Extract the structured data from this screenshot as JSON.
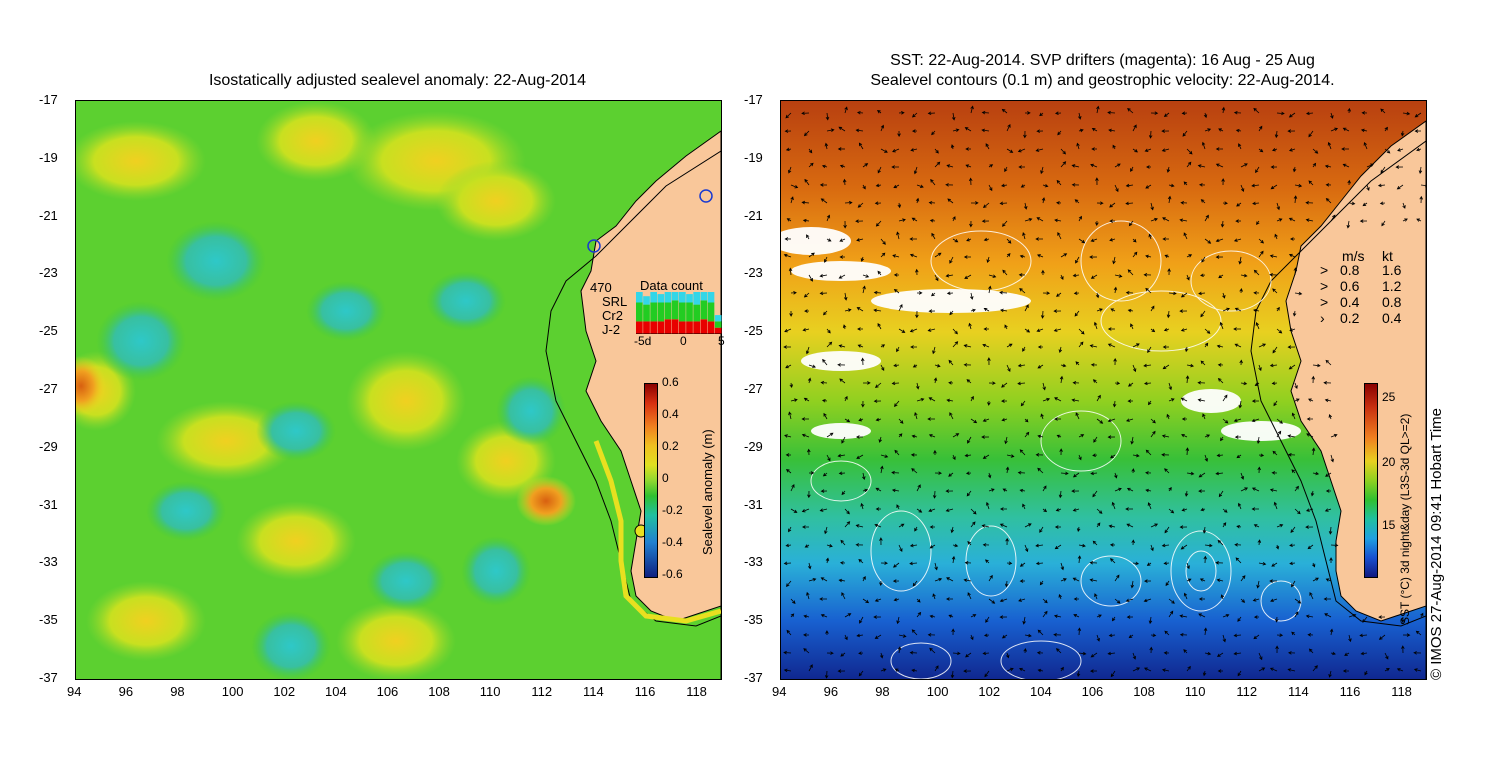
{
  "left": {
    "title": "Isostatically adjusted sealevel anomaly: 22-Aug-2014",
    "colorbar": {
      "label": "Sealevel anomaly (m)",
      "ticks": [
        "0.6",
        "0.4",
        "0.2",
        "0",
        "-0.2",
        "-0.4",
        "-0.6"
      ]
    },
    "data_count": {
      "total": "470",
      "title": "Data count",
      "sat1": "SRL",
      "sat2": "Cr2",
      "sat3": "J-2",
      "sat1_color": "#33d6e8",
      "sat2_color": "#22cc22",
      "sat3_color": "#e80000",
      "xticks": [
        "-5d",
        "0",
        "5"
      ],
      "bars": [
        {
          "j2": 0.3,
          "cr2": 0.45,
          "srl": 0.25
        },
        {
          "j2": 0.3,
          "cr2": 0.4,
          "srl": 0.2
        },
        {
          "j2": 0.3,
          "cr2": 0.45,
          "srl": 0.25
        },
        {
          "j2": 0.3,
          "cr2": 0.45,
          "srl": 0.2
        },
        {
          "j2": 0.35,
          "cr2": 0.4,
          "srl": 0.25
        },
        {
          "j2": 0.35,
          "cr2": 0.45,
          "srl": 0.2
        },
        {
          "j2": 0.3,
          "cr2": 0.45,
          "srl": 0.25
        },
        {
          "j2": 0.3,
          "cr2": 0.45,
          "srl": 0.2
        },
        {
          "j2": 0.3,
          "cr2": 0.4,
          "srl": 0.3
        },
        {
          "j2": 0.35,
          "cr2": 0.45,
          "srl": 0.2
        },
        {
          "j2": 0.3,
          "cr2": 0.45,
          "srl": 0.25
        },
        {
          "j2": 0.15,
          "cr2": 0.15,
          "srl": 0.15
        }
      ]
    }
  },
  "right": {
    "title_line1": "SST: 22-Aug-2014. SVP drifters (magenta): 16 Aug - 25 Aug",
    "title_line2": "Sealevel contours (0.1 m) and geostrophic velocity: 22-Aug-2014.",
    "velocity_legend": {
      "header_ms": "m/s",
      "header_kt": "kt",
      "rows": [
        {
          "ms": "0.8",
          "kt": "1.6"
        },
        {
          "ms": "0.6",
          "kt": "1.2"
        },
        {
          "ms": "0.4",
          "kt": "0.8"
        },
        {
          "ms": "0.2",
          "kt": "0.4"
        }
      ]
    },
    "colorbar": {
      "label": "SST (°C) 3d night&day (L3S-3d QL>=2)",
      "ticks": [
        "25",
        "20",
        "15"
      ]
    }
  },
  "axes": {
    "x_ticks": [
      "94",
      "96",
      "98",
      "100",
      "102",
      "104",
      "106",
      "108",
      "110",
      "112",
      "114",
      "116",
      "118"
    ],
    "y_ticks": [
      "-17",
      "-19",
      "-21",
      "-23",
      "-25",
      "-27",
      "-29",
      "-31",
      "-33",
      "-35",
      "-37"
    ]
  },
  "copyright": "© IMOS 27-Aug-2014 09:41 Hobart Time",
  "colors": {
    "land": "#f9c79a",
    "ocean_green": "#3ec83e",
    "ssh_yellow": "#e8e020",
    "sst_warm": "#c84a10",
    "sst_cold": "#1448c8"
  }
}
